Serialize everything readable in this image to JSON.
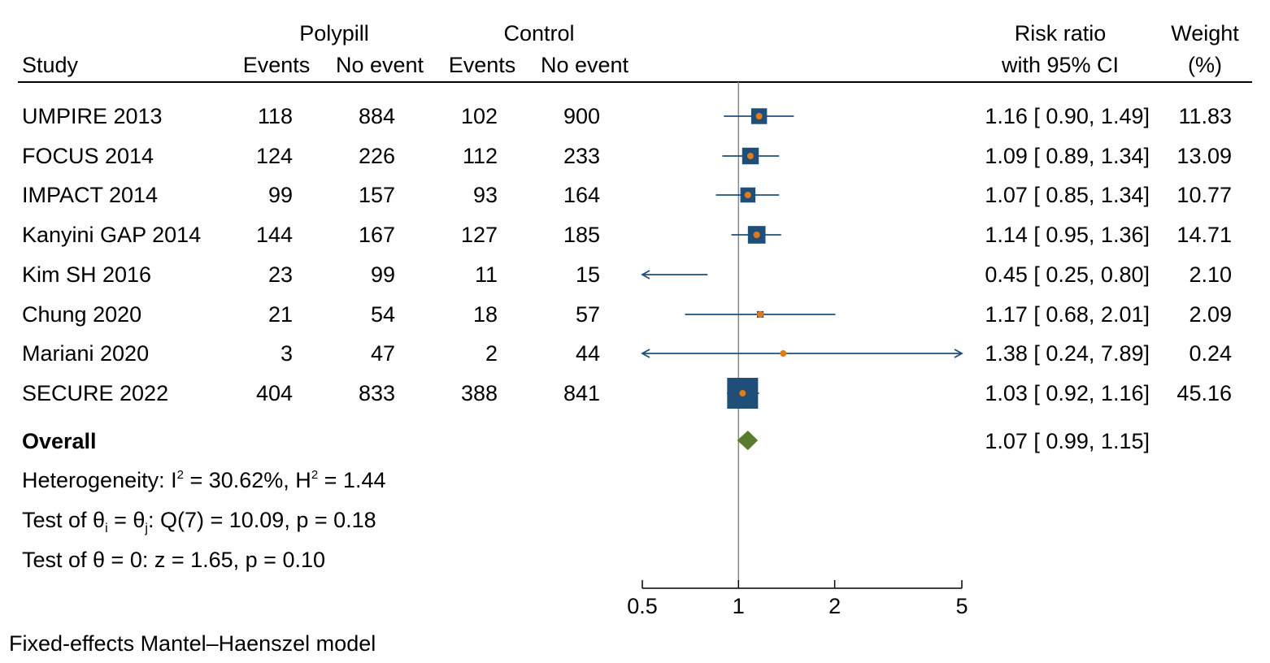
{
  "chart_data": {
    "type": "forest",
    "headers": {
      "study": "Study",
      "polypill": "Polypill",
      "control": "Control",
      "events": "Events",
      "no_event": "No event",
      "rr_line1": "Risk ratio",
      "rr_line2": "with 95% CI",
      "weight_line1": "Weight",
      "weight_line2": "(%)"
    },
    "studies": [
      {
        "name": "UMPIRE 2013",
        "pp_events": "118",
        "pp_no": "884",
        "c_events": "102",
        "c_no": "900",
        "rr": 1.16,
        "lo": 0.9,
        "hi": 1.49,
        "ci_text": "1.16 [ 0.90,  1.49]",
        "weight": "11.83",
        "w": 11.83
      },
      {
        "name": "FOCUS 2014",
        "pp_events": "124",
        "pp_no": "226",
        "c_events": "112",
        "c_no": "233",
        "rr": 1.09,
        "lo": 0.89,
        "hi": 1.34,
        "ci_text": "1.09 [ 0.89,  1.34]",
        "weight": "13.09",
        "w": 13.09
      },
      {
        "name": "IMPACT 2014",
        "pp_events": "99",
        "pp_no": "157",
        "c_events": "93",
        "c_no": "164",
        "rr": 1.07,
        "lo": 0.85,
        "hi": 1.34,
        "ci_text": "1.07 [ 0.85,  1.34]",
        "weight": "10.77",
        "w": 10.77
      },
      {
        "name": "Kanyini GAP 2014",
        "pp_events": "144",
        "pp_no": "167",
        "c_events": "127",
        "c_no": "185",
        "rr": 1.14,
        "lo": 0.95,
        "hi": 1.36,
        "ci_text": "1.14 [ 0.95,  1.36]",
        "weight": "14.71",
        "w": 14.71
      },
      {
        "name": "Kim SH 2016",
        "pp_events": "23",
        "pp_no": "99",
        "c_events": "11",
        "c_no": "15",
        "rr": 0.45,
        "lo": 0.25,
        "hi": 0.8,
        "ci_text": "0.45 [ 0.25,  0.80]",
        "weight": "2.10",
        "w": 2.1
      },
      {
        "name": "Chung 2020",
        "pp_events": "21",
        "pp_no": "54",
        "c_events": "18",
        "c_no": "57",
        "rr": 1.17,
        "lo": 0.68,
        "hi": 2.01,
        "ci_text": "1.17 [ 0.68,  2.01]",
        "weight": "2.09",
        "w": 2.09
      },
      {
        "name": "Mariani 2020",
        "pp_events": "3",
        "pp_no": "47",
        "c_events": "2",
        "c_no": "44",
        "rr": 1.38,
        "lo": 0.24,
        "hi": 7.89,
        "ci_text": "1.38 [ 0.24,  7.89]",
        "weight": "0.24",
        "w": 0.24
      },
      {
        "name": "SECURE 2022",
        "pp_events": "404",
        "pp_no": "833",
        "c_events": "388",
        "c_no": "841",
        "rr": 1.03,
        "lo": 0.92,
        "hi": 1.16,
        "ci_text": "1.03 [ 0.92,  1.16]",
        "weight": "45.16",
        "w": 45.16
      }
    ],
    "overall": {
      "label": "Overall",
      "rr": 1.07,
      "lo": 0.99,
      "hi": 1.15,
      "ci_text": "1.07 [ 0.99,  1.15]"
    },
    "heterogeneity": {
      "prefix": "Heterogeneity: I",
      "sup1": "2",
      "mid": " = 30.62%, H",
      "sup2": "2",
      "suffix": " = 1.44"
    },
    "test_theta_ij": {
      "p1": "Test of θ",
      "sub1": "i",
      "p2": " = θ",
      "sub2": "j",
      "p3": ": Q(7) = 10.09, p = 0.18"
    },
    "test_theta_0": "Test of θ = 0: z = 1.65, p = 0.10",
    "x_axis": {
      "scale": "log",
      "range": [
        0.5,
        5
      ],
      "ticks": [
        0.5,
        1,
        2,
        5
      ],
      "tick_labels": [
        "0.5",
        "1",
        "2",
        "5"
      ],
      "null_line": 1
    },
    "note": "Fixed-effects Mantel–Haenszel model",
    "colors": {
      "box": "#1f4e79",
      "point": "#e07b1a",
      "ci": "#1f4e79",
      "diamond": "#5a7a30",
      "null_line": "#888888"
    }
  }
}
